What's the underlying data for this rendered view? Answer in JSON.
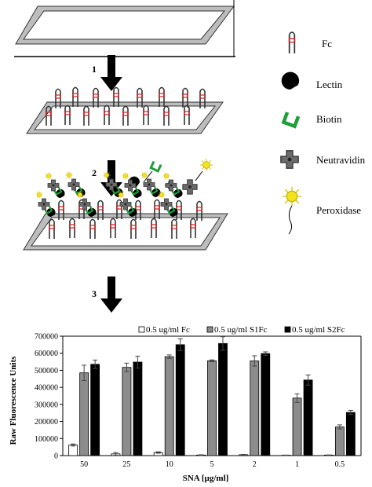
{
  "steps": [
    "1",
    "2",
    "3"
  ],
  "legend_key": [
    {
      "label": "Fc",
      "icon": "fc-icon"
    },
    {
      "label": "Lectin",
      "icon": "lectin-icon"
    },
    {
      "label": "Biotin",
      "icon": "biotin-icon"
    },
    {
      "label": "Neutravidin",
      "icon": "neutravidin-icon"
    },
    {
      "label": "Peroxidase",
      "icon": "peroxidase-icon"
    }
  ],
  "plus_sign": "+",
  "colors": {
    "fc_marker": "#d62020",
    "biotin": "#1f9e3a",
    "neutravidin": "#6b6b6b",
    "peroxidase": "#f4e21c",
    "lectin": "#000000"
  },
  "chart_data": {
    "type": "bar",
    "title": "",
    "xlabel": "SNA [µg/ml]",
    "ylabel": "Raw Fluorescence Units",
    "ylim": [
      0,
      700000
    ],
    "yticks": [
      0,
      100000,
      200000,
      300000,
      400000,
      500000,
      600000,
      700000
    ],
    "categories": [
      "50",
      "25",
      "10",
      "5",
      "2",
      "1",
      "0.5"
    ],
    "legend_position": "top",
    "series": [
      {
        "name": "0.5 ug/ml Fc",
        "color": "#ffffff",
        "values": [
          62000,
          10000,
          18000,
          3000,
          5000,
          2000,
          3000
        ],
        "errors": [
          6000,
          8000,
          4000,
          2000,
          2000,
          1000,
          1000
        ]
      },
      {
        "name": "0.5 ug/ml S1Fc",
        "color": "#8c8c8c",
        "values": [
          485000,
          517000,
          580000,
          556000,
          555000,
          337000,
          168000
        ],
        "errors": [
          45000,
          25000,
          10000,
          5000,
          30000,
          25000,
          12000
        ]
      },
      {
        "name": "0.5 ug/ml S2Fc",
        "color": "#000000",
        "values": [
          535000,
          548000,
          650000,
          657000,
          598000,
          443000,
          253000
        ],
        "errors": [
          25000,
          35000,
          35000,
          40000,
          10000,
          30000,
          12000
        ]
      }
    ]
  }
}
